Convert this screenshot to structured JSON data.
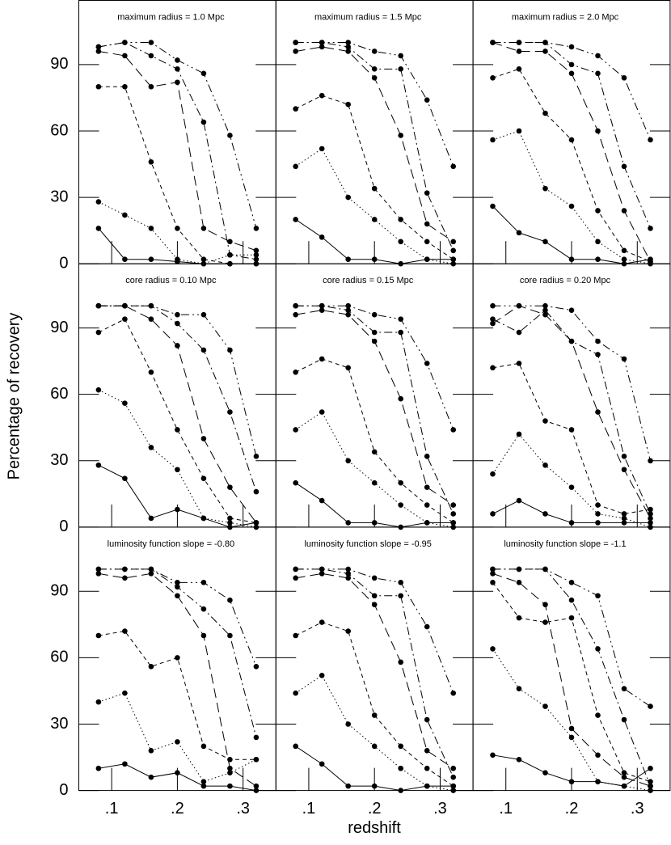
{
  "ylabel": "Percentage of recovery",
  "xlabel": "redshift",
  "chart_data": [
    {
      "type": "line",
      "title": "maximum radius = 1.0 Mpc",
      "x": [
        0.08,
        0.12,
        0.16,
        0.2,
        0.24,
        0.28,
        0.32
      ],
      "xlim": [
        0.05,
        0.35
      ],
      "ylim": [
        0,
        119
      ],
      "xticks": [
        {
          "value": 0.1,
          "label": ".1"
        },
        {
          "value": 0.2,
          "label": ".2"
        },
        {
          "value": 0.3,
          "label": ".3"
        }
      ],
      "yticks": [
        0,
        30,
        60,
        90
      ],
      "series": [
        {
          "color": "#000000",
          "dash": "solid",
          "values": [
            16,
            2,
            2,
            1,
            0,
            0,
            0
          ]
        },
        {
          "color": "#000000",
          "dash": "dotted",
          "values": [
            28,
            22,
            16,
            2,
            0,
            4,
            4
          ]
        },
        {
          "color": "#000000",
          "dash": "short-dash",
          "values": [
            80,
            80,
            46,
            16,
            2,
            0,
            0
          ]
        },
        {
          "color": "#000000",
          "dash": "long-dash",
          "values": [
            96,
            94,
            80,
            82,
            16,
            10,
            6
          ]
        },
        {
          "color": "#000000",
          "dash": "dash-dot",
          "values": [
            98,
            100,
            94,
            88,
            64,
            4,
            2
          ]
        },
        {
          "color": "#000000",
          "dash": "dash-dot-dot",
          "values": [
            98,
            100,
            100,
            92,
            86,
            58,
            16
          ]
        }
      ]
    },
    {
      "type": "line",
      "title": "maximum radius = 1.5 Mpc",
      "x": [
        0.08,
        0.12,
        0.16,
        0.2,
        0.24,
        0.28,
        0.32
      ],
      "xlim": [
        0.05,
        0.35
      ],
      "ylim": [
        0,
        119
      ],
      "xticks": [
        {
          "value": 0.1,
          "label": ".1"
        },
        {
          "value": 0.2,
          "label": ".2"
        },
        {
          "value": 0.3,
          "label": ".3"
        }
      ],
      "yticks": [
        0,
        30,
        60,
        90
      ],
      "series": [
        {
          "color": "#000000",
          "dash": "solid",
          "values": [
            20,
            12,
            2,
            2,
            0,
            2,
            2
          ]
        },
        {
          "color": "#000000",
          "dash": "dotted",
          "values": [
            44,
            52,
            30,
            20,
            10,
            2,
            0
          ]
        },
        {
          "color": "#000000",
          "dash": "short-dash",
          "values": [
            70,
            76,
            72,
            34,
            20,
            10,
            2
          ]
        },
        {
          "color": "#000000",
          "dash": "long-dash",
          "values": [
            96,
            98,
            96,
            84,
            58,
            18,
            10
          ]
        },
        {
          "color": "#000000",
          "dash": "dash-dot",
          "values": [
            100,
            100,
            98,
            88,
            88,
            32,
            6
          ]
        },
        {
          "color": "#000000",
          "dash": "dash-dot-dot",
          "values": [
            100,
            100,
            100,
            96,
            94,
            74,
            44
          ]
        }
      ]
    },
    {
      "type": "line",
      "title": "maximum radius = 2.0 Mpc",
      "x": [
        0.08,
        0.12,
        0.16,
        0.2,
        0.24,
        0.28,
        0.32
      ],
      "xlim": [
        0.05,
        0.35
      ],
      "ylim": [
        0,
        119
      ],
      "xticks": [
        {
          "value": 0.1,
          "label": ".1"
        },
        {
          "value": 0.2,
          "label": ".2"
        },
        {
          "value": 0.3,
          "label": ".3"
        }
      ],
      "yticks": [
        0,
        30,
        60,
        90
      ],
      "series": [
        {
          "color": "#000000",
          "dash": "solid",
          "values": [
            26,
            14,
            10,
            2,
            2,
            0,
            2
          ]
        },
        {
          "color": "#000000",
          "dash": "dotted",
          "values": [
            56,
            60,
            34,
            26,
            10,
            2,
            0
          ]
        },
        {
          "color": "#000000",
          "dash": "short-dash",
          "values": [
            84,
            88,
            68,
            56,
            24,
            6,
            1
          ]
        },
        {
          "color": "#000000",
          "dash": "long-dash",
          "values": [
            100,
            96,
            96,
            86,
            60,
            24,
            1
          ]
        },
        {
          "color": "#000000",
          "dash": "dash-dot",
          "values": [
            100,
            100,
            100,
            90,
            86,
            44,
            16
          ]
        },
        {
          "color": "#000000",
          "dash": "dash-dot-dot",
          "values": [
            100,
            100,
            100,
            98,
            94,
            84,
            56
          ]
        }
      ]
    },
    {
      "type": "line",
      "title": "core radius = 0.10 Mpc",
      "x": [
        0.08,
        0.12,
        0.16,
        0.2,
        0.24,
        0.28,
        0.32
      ],
      "xlim": [
        0.05,
        0.35
      ],
      "ylim": [
        0,
        119
      ],
      "xticks": [
        {
          "value": 0.1,
          "label": ".1"
        },
        {
          "value": 0.2,
          "label": ".2"
        },
        {
          "value": 0.3,
          "label": ".3"
        }
      ],
      "yticks": [
        0,
        30,
        60,
        90
      ],
      "series": [
        {
          "color": "#000000",
          "dash": "solid",
          "values": [
            28,
            22,
            4,
            8,
            4,
            0,
            2
          ]
        },
        {
          "color": "#000000",
          "dash": "dotted",
          "values": [
            62,
            56,
            36,
            26,
            4,
            2,
            0
          ]
        },
        {
          "color": "#000000",
          "dash": "short-dash",
          "values": [
            88,
            94,
            70,
            44,
            22,
            4,
            2
          ]
        },
        {
          "color": "#000000",
          "dash": "long-dash",
          "values": [
            100,
            100,
            94,
            82,
            40,
            18,
            2
          ]
        },
        {
          "color": "#000000",
          "dash": "dash-dot",
          "values": [
            100,
            100,
            100,
            92,
            80,
            52,
            16
          ]
        },
        {
          "color": "#000000",
          "dash": "dash-dot-dot",
          "values": [
            100,
            100,
            100,
            96,
            96,
            80,
            32
          ]
        }
      ]
    },
    {
      "type": "line",
      "title": "core radius = 0.15 Mpc",
      "x": [
        0.08,
        0.12,
        0.16,
        0.2,
        0.24,
        0.28,
        0.32
      ],
      "xlim": [
        0.05,
        0.35
      ],
      "ylim": [
        0,
        119
      ],
      "xticks": [
        {
          "value": 0.1,
          "label": ".1"
        },
        {
          "value": 0.2,
          "label": ".2"
        },
        {
          "value": 0.3,
          "label": ".3"
        }
      ],
      "yticks": [
        0,
        30,
        60,
        90
      ],
      "series": [
        {
          "color": "#000000",
          "dash": "solid",
          "values": [
            20,
            12,
            2,
            2,
            0,
            2,
            2
          ]
        },
        {
          "color": "#000000",
          "dash": "dotted",
          "values": [
            44,
            52,
            30,
            20,
            10,
            2,
            0
          ]
        },
        {
          "color": "#000000",
          "dash": "short-dash",
          "values": [
            70,
            76,
            72,
            34,
            20,
            10,
            2
          ]
        },
        {
          "color": "#000000",
          "dash": "long-dash",
          "values": [
            96,
            98,
            96,
            84,
            58,
            18,
            10
          ]
        },
        {
          "color": "#000000",
          "dash": "dash-dot",
          "values": [
            100,
            100,
            98,
            88,
            88,
            32,
            6
          ]
        },
        {
          "color": "#000000",
          "dash": "dash-dot-dot",
          "values": [
            100,
            100,
            100,
            96,
            94,
            74,
            44
          ]
        }
      ]
    },
    {
      "type": "line",
      "title": "core radius = 0.20 Mpc",
      "x": [
        0.08,
        0.12,
        0.16,
        0.2,
        0.24,
        0.28,
        0.32
      ],
      "xlim": [
        0.05,
        0.35
      ],
      "ylim": [
        0,
        119
      ],
      "xticks": [
        {
          "value": 0.1,
          "label": ".1"
        },
        {
          "value": 0.2,
          "label": ".2"
        },
        {
          "value": 0.3,
          "label": ".3"
        }
      ],
      "yticks": [
        0,
        30,
        60,
        90
      ],
      "series": [
        {
          "color": "#000000",
          "dash": "solid",
          "values": [
            6,
            12,
            6,
            2,
            2,
            2,
            2
          ]
        },
        {
          "color": "#000000",
          "dash": "dotted",
          "values": [
            24,
            42,
            28,
            18,
            6,
            4,
            0
          ]
        },
        {
          "color": "#000000",
          "dash": "short-dash",
          "values": [
            72,
            74,
            48,
            44,
            10,
            6,
            8
          ]
        },
        {
          "color": "#000000",
          "dash": "long-dash",
          "values": [
            92,
            100,
            96,
            84,
            52,
            26,
            4
          ]
        },
        {
          "color": "#000000",
          "dash": "dash-dot",
          "values": [
            94,
            88,
            98,
            84,
            78,
            32,
            6
          ]
        },
        {
          "color": "#000000",
          "dash": "dash-dot-dot",
          "values": [
            100,
            100,
            100,
            98,
            84,
            76,
            30
          ]
        }
      ]
    },
    {
      "type": "line",
      "title": "luminosity function slope = -0.80",
      "x": [
        0.08,
        0.12,
        0.16,
        0.2,
        0.24,
        0.28,
        0.32
      ],
      "xlim": [
        0.05,
        0.35
      ],
      "ylim": [
        0,
        119
      ],
      "xticks": [
        {
          "value": 0.1,
          "label": ".1"
        },
        {
          "value": 0.2,
          "label": ".2"
        },
        {
          "value": 0.3,
          "label": ".3"
        }
      ],
      "yticks": [
        0,
        30,
        60,
        90
      ],
      "series": [
        {
          "color": "#000000",
          "dash": "solid",
          "values": [
            10,
            12,
            6,
            8,
            2,
            2,
            0
          ]
        },
        {
          "color": "#000000",
          "dash": "dotted",
          "values": [
            40,
            44,
            18,
            22,
            4,
            8,
            14
          ]
        },
        {
          "color": "#000000",
          "dash": "short-dash",
          "values": [
            70,
            72,
            56,
            60,
            20,
            14,
            14
          ]
        },
        {
          "color": "#000000",
          "dash": "long-dash",
          "values": [
            98,
            96,
            98,
            88,
            70,
            10,
            2
          ]
        },
        {
          "color": "#000000",
          "dash": "dash-dot",
          "values": [
            100,
            100,
            100,
            92,
            82,
            70,
            24
          ]
        },
        {
          "color": "#000000",
          "dash": "dash-dot-dot",
          "values": [
            100,
            100,
            100,
            94,
            94,
            86,
            56
          ]
        }
      ]
    },
    {
      "type": "line",
      "title": "luminosity function slope = -0.95",
      "x": [
        0.08,
        0.12,
        0.16,
        0.2,
        0.24,
        0.28,
        0.32
      ],
      "xlim": [
        0.05,
        0.35
      ],
      "ylim": [
        0,
        119
      ],
      "xticks": [
        {
          "value": 0.1,
          "label": ".1"
        },
        {
          "value": 0.2,
          "label": ".2"
        },
        {
          "value": 0.3,
          "label": ".3"
        }
      ],
      "yticks": [
        0,
        30,
        60,
        90
      ],
      "series": [
        {
          "color": "#000000",
          "dash": "solid",
          "values": [
            20,
            12,
            2,
            2,
            0,
            2,
            2
          ]
        },
        {
          "color": "#000000",
          "dash": "dotted",
          "values": [
            44,
            52,
            30,
            20,
            10,
            2,
            0
          ]
        },
        {
          "color": "#000000",
          "dash": "short-dash",
          "values": [
            70,
            76,
            72,
            34,
            20,
            10,
            2
          ]
        },
        {
          "color": "#000000",
          "dash": "long-dash",
          "values": [
            96,
            98,
            96,
            84,
            58,
            18,
            10
          ]
        },
        {
          "color": "#000000",
          "dash": "dash-dot",
          "values": [
            100,
            100,
            98,
            88,
            88,
            32,
            6
          ]
        },
        {
          "color": "#000000",
          "dash": "dash-dot-dot",
          "values": [
            100,
            100,
            100,
            96,
            94,
            74,
            44
          ]
        }
      ]
    },
    {
      "type": "line",
      "title": "luminosity function slope = -1.1",
      "x": [
        0.08,
        0.12,
        0.16,
        0.2,
        0.24,
        0.28,
        0.32
      ],
      "xlim": [
        0.05,
        0.35
      ],
      "ylim": [
        0,
        119
      ],
      "xticks": [
        {
          "value": 0.1,
          "label": ".1"
        },
        {
          "value": 0.2,
          "label": ".2"
        },
        {
          "value": 0.3,
          "label": ".3"
        }
      ],
      "yticks": [
        0,
        30,
        60,
        90
      ],
      "series": [
        {
          "color": "#000000",
          "dash": "solid",
          "values": [
            16,
            14,
            8,
            4,
            4,
            2,
            10
          ]
        },
        {
          "color": "#000000",
          "dash": "dotted",
          "values": [
            64,
            46,
            38,
            24,
            4,
            2,
            0
          ]
        },
        {
          "color": "#000000",
          "dash": "short-dash",
          "values": [
            94,
            78,
            76,
            78,
            34,
            8,
            4
          ]
        },
        {
          "color": "#000000",
          "dash": "long-dash",
          "values": [
            98,
            94,
            84,
            28,
            16,
            6,
            2
          ]
        },
        {
          "color": "#000000",
          "dash": "dash-dot",
          "values": [
            100,
            100,
            100,
            86,
            64,
            32,
            2
          ]
        },
        {
          "color": "#000000",
          "dash": "dash-dot-dot",
          "values": [
            100,
            100,
            100,
            94,
            88,
            46,
            38
          ]
        }
      ]
    }
  ]
}
